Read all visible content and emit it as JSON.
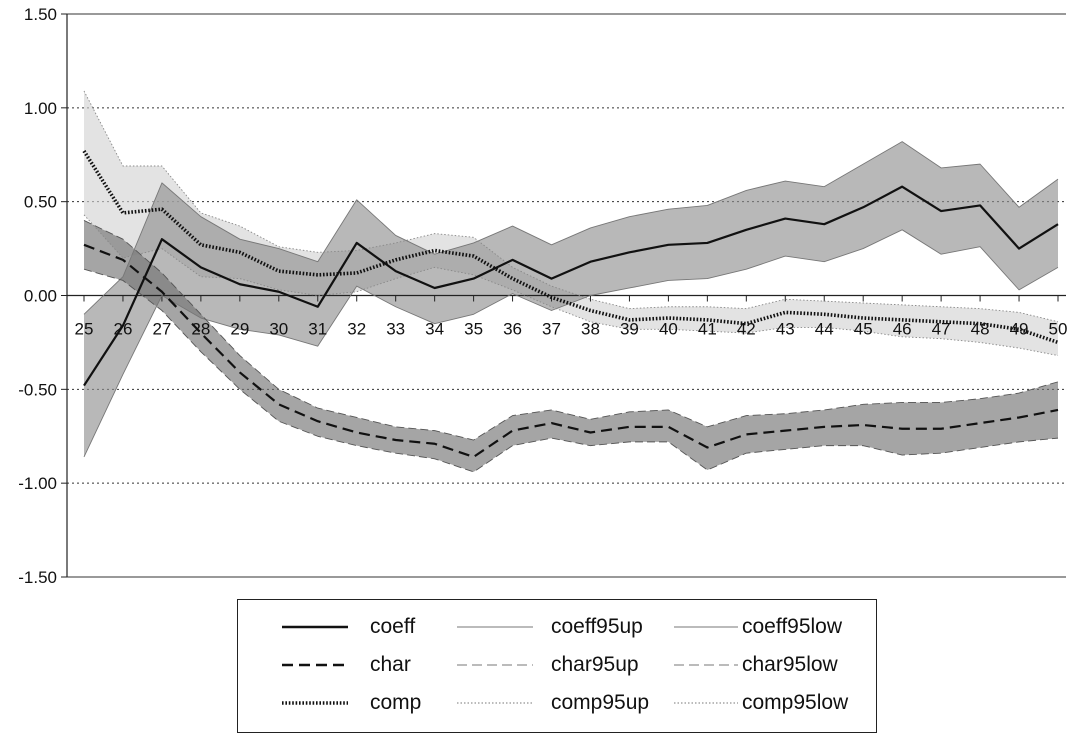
{
  "chart_data": {
    "type": "line",
    "x": [
      25,
      26,
      27,
      28,
      29,
      30,
      31,
      32,
      33,
      34,
      35,
      36,
      37,
      38,
      39,
      40,
      41,
      42,
      43,
      44,
      45,
      46,
      47,
      48,
      49,
      50
    ],
    "y_ticks": [
      "1.50",
      "1.00",
      "0.50",
      "0.00",
      "-0.50",
      "-1.00",
      "-1.50"
    ],
    "x_ticks": [
      "25",
      "26",
      "27",
      "28",
      "29",
      "30",
      "31",
      "32",
      "33",
      "34",
      "35",
      "36",
      "37",
      "38",
      "39",
      "40",
      "41",
      "42",
      "43",
      "44",
      "45",
      "46",
      "47",
      "48",
      "49",
      "50"
    ],
    "ylim": [
      -1.5,
      1.5
    ],
    "grid": "horizontal dotted",
    "legend_placement": "bottom",
    "series": [
      {
        "name": "coeff",
        "style": "solid",
        "values": [
          -0.48,
          -0.16,
          0.3,
          0.15,
          0.06,
          0.02,
          -0.06,
          0.28,
          0.13,
          0.04,
          0.09,
          0.19,
          0.09,
          0.18,
          0.23,
          0.27,
          0.28,
          0.35,
          0.41,
          0.38,
          0.47,
          0.58,
          0.45,
          0.48,
          0.25,
          0.38
        ]
      },
      {
        "name": "coeff95up",
        "style": "thin-solid",
        "values": [
          -0.1,
          0.1,
          0.6,
          0.42,
          0.3,
          0.25,
          0.18,
          0.51,
          0.32,
          0.22,
          0.28,
          0.37,
          0.27,
          0.36,
          0.42,
          0.46,
          0.48,
          0.56,
          0.61,
          0.58,
          0.7,
          0.82,
          0.68,
          0.7,
          0.47,
          0.62
        ]
      },
      {
        "name": "coeff95low",
        "style": "thin-solid",
        "values": [
          -0.86,
          -0.42,
          0.0,
          -0.12,
          -0.18,
          -0.21,
          -0.27,
          0.05,
          -0.06,
          -0.15,
          -0.1,
          0.01,
          -0.08,
          0.0,
          0.04,
          0.08,
          0.09,
          0.14,
          0.21,
          0.18,
          0.25,
          0.35,
          0.22,
          0.26,
          0.03,
          0.15
        ]
      },
      {
        "name": "char",
        "style": "dashed",
        "values": [
          0.27,
          0.19,
          0.02,
          -0.2,
          -0.41,
          -0.58,
          -0.67,
          -0.73,
          -0.77,
          -0.79,
          -0.86,
          -0.72,
          -0.68,
          -0.73,
          -0.7,
          -0.7,
          -0.81,
          -0.74,
          -0.72,
          -0.7,
          -0.69,
          -0.71,
          -0.71,
          -0.68,
          -0.65,
          -0.61
        ]
      },
      {
        "name": "char95up",
        "style": "thin-dashed",
        "values": [
          0.4,
          0.3,
          0.12,
          -0.1,
          -0.32,
          -0.5,
          -0.6,
          -0.65,
          -0.7,
          -0.72,
          -0.77,
          -0.64,
          -0.61,
          -0.66,
          -0.62,
          -0.61,
          -0.7,
          -0.64,
          -0.63,
          -0.61,
          -0.58,
          -0.57,
          -0.57,
          -0.55,
          -0.52,
          -0.46
        ]
      },
      {
        "name": "char95low",
        "style": "thin-dashed",
        "values": [
          0.14,
          0.08,
          -0.08,
          -0.3,
          -0.5,
          -0.67,
          -0.75,
          -0.8,
          -0.84,
          -0.87,
          -0.94,
          -0.8,
          -0.76,
          -0.8,
          -0.78,
          -0.78,
          -0.93,
          -0.84,
          -0.82,
          -0.8,
          -0.8,
          -0.85,
          -0.84,
          -0.81,
          -0.78,
          -0.76
        ]
      },
      {
        "name": "comp",
        "style": "dotted-thick",
        "values": [
          0.77,
          0.44,
          0.46,
          0.27,
          0.23,
          0.13,
          0.11,
          0.12,
          0.19,
          0.24,
          0.21,
          0.09,
          -0.01,
          -0.08,
          -0.13,
          -0.12,
          -0.13,
          -0.15,
          -0.09,
          -0.1,
          -0.12,
          -0.13,
          -0.14,
          -0.15,
          -0.18,
          -0.25
        ]
      },
      {
        "name": "comp95up",
        "style": "thin-dotted",
        "values": [
          1.09,
          0.69,
          0.69,
          0.44,
          0.37,
          0.26,
          0.23,
          0.24,
          0.28,
          0.33,
          0.31,
          0.15,
          0.05,
          -0.02,
          -0.07,
          -0.06,
          -0.06,
          -0.07,
          -0.02,
          -0.03,
          -0.04,
          -0.05,
          -0.06,
          -0.07,
          -0.09,
          -0.14
        ]
      },
      {
        "name": "comp95low",
        "style": "thin-dotted",
        "values": [
          0.43,
          0.2,
          0.25,
          0.1,
          0.09,
          0.03,
          0.0,
          0.02,
          0.09,
          0.15,
          0.11,
          0.03,
          -0.06,
          -0.14,
          -0.18,
          -0.18,
          -0.19,
          -0.2,
          -0.17,
          -0.17,
          -0.19,
          -0.22,
          -0.23,
          -0.25,
          -0.28,
          -0.32
        ]
      }
    ]
  },
  "colors": {
    "coeff_band": "#8c8c8c",
    "char_band": "#6e6e6e",
    "comp_band": "#d2d2d2",
    "line": "#111111"
  }
}
